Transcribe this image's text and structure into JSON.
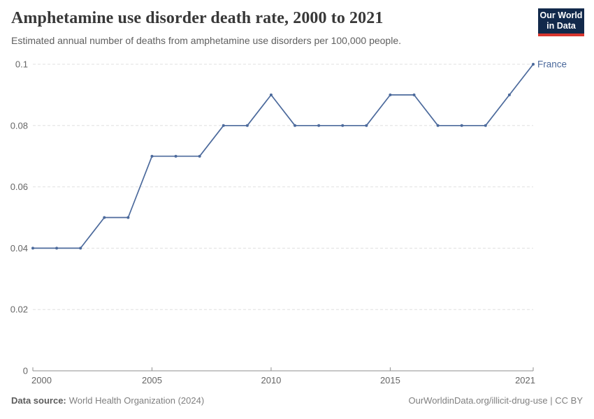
{
  "header": {
    "title": "Amphetamine use disorder death rate, 2000 to 2021",
    "subtitle": "Estimated annual number of deaths from amphetamine use disorders per 100,000 people."
  },
  "logo": {
    "line1": "Our World",
    "line2": "in Data",
    "bg_color": "#12294b",
    "accent_color": "#d8352e",
    "text_color": "#ffffff"
  },
  "footer": {
    "source_label": "Data source:",
    "source_text": "World Health Organization (2024)",
    "attribution": "OurWorldinData.org/illicit-drug-use | CC BY"
  },
  "colors": {
    "line": "#4C6A9C",
    "grid": "#e0e0e0",
    "axis": "#8f8f8f",
    "tick_text": "#666666"
  },
  "chart_data": {
    "type": "line",
    "title": "Amphetamine use disorder death rate, 2000 to 2021",
    "xlabel": "",
    "ylabel": "",
    "xlim": [
      2000,
      2021
    ],
    "ylim": [
      0,
      0.1
    ],
    "grid": "horizontal-dashed",
    "legend_position": "end-of-line-label",
    "x": [
      2000,
      2001,
      2002,
      2003,
      2004,
      2005,
      2006,
      2007,
      2008,
      2009,
      2010,
      2011,
      2012,
      2013,
      2014,
      2015,
      2016,
      2017,
      2018,
      2019,
      2020,
      2021
    ],
    "series": [
      {
        "name": "France",
        "color": "#4C6A9C",
        "values": [
          0.04,
          0.04,
          0.04,
          0.05,
          0.05,
          0.07,
          0.07,
          0.07,
          0.08,
          0.08,
          0.09,
          0.08,
          0.08,
          0.08,
          0.08,
          0.09,
          0.09,
          0.08,
          0.08,
          0.08,
          0.09,
          0.1
        ]
      }
    ],
    "yticks": [
      {
        "v": 0,
        "label": "0"
      },
      {
        "v": 0.02,
        "label": "0.02"
      },
      {
        "v": 0.04,
        "label": "0.04"
      },
      {
        "v": 0.06,
        "label": "0.06"
      },
      {
        "v": 0.08,
        "label": "0.08"
      },
      {
        "v": 0.1,
        "label": "0.1"
      }
    ],
    "xticks": [
      {
        "v": 2000,
        "label": "2000",
        "anchor": "start"
      },
      {
        "v": 2005,
        "label": "2005",
        "anchor": "middle"
      },
      {
        "v": 2010,
        "label": "2010",
        "anchor": "middle"
      },
      {
        "v": 2015,
        "label": "2015",
        "anchor": "middle"
      },
      {
        "v": 2021,
        "label": "2021",
        "anchor": "end"
      }
    ]
  }
}
